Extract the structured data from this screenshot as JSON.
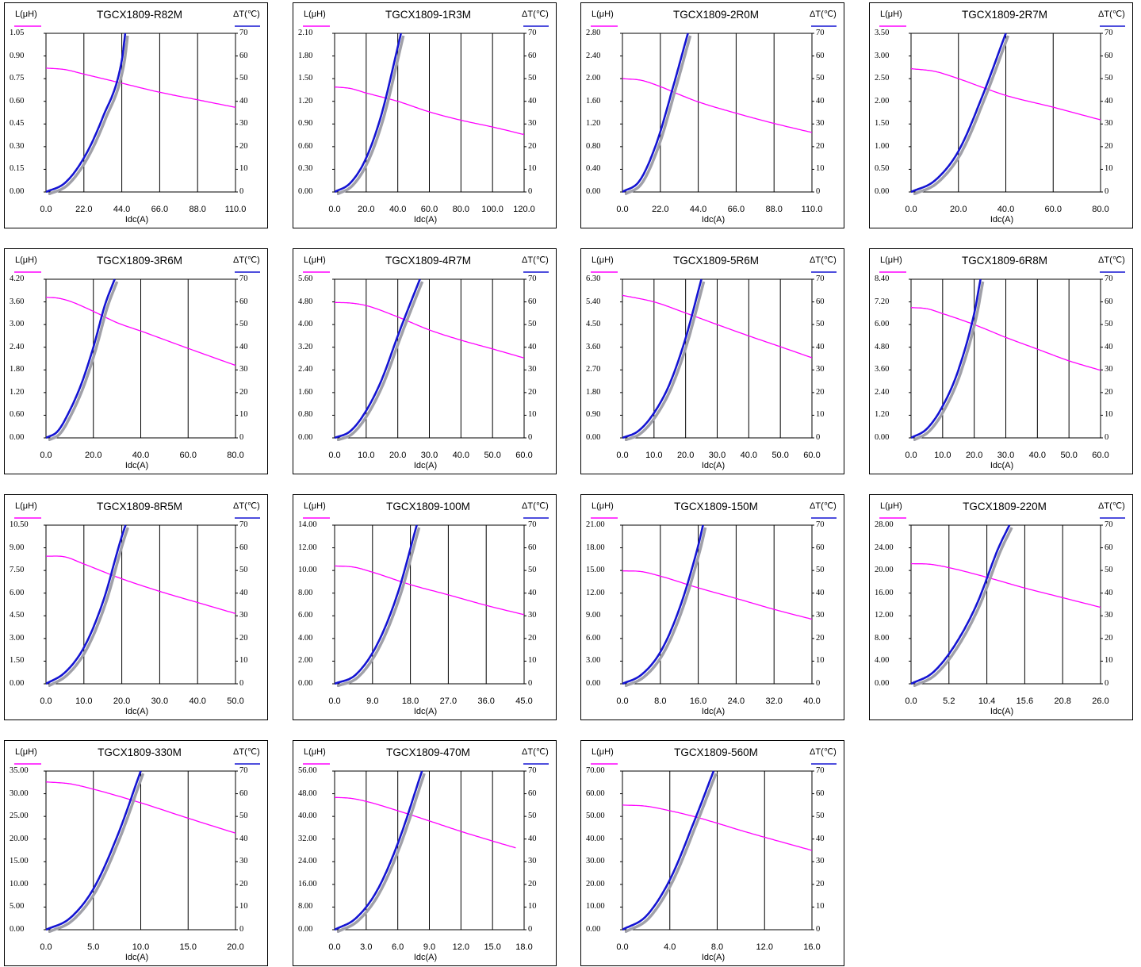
{
  "common": {
    "left_axis_label": "L(μH)",
    "right_axis_label": "ΔT(℃)",
    "x_axis_label": "Idc(A)",
    "right_ticks": [
      "70",
      "60",
      "50",
      "40",
      "30",
      "20",
      "10",
      "0"
    ]
  },
  "colors": {
    "inductance": "#ff00ff",
    "temperature": "#1414d2",
    "shadow": "#a0a0a8"
  },
  "chart_data": [
    {
      "type": "line",
      "title": "TGCX1809-R82M",
      "xlabel": "Idc(A)",
      "ylabel": "L(μH)",
      "y2label": "ΔT(℃)",
      "xticks": [
        "0.0",
        "22.0",
        "44.0",
        "66.0",
        "88.0",
        "110.0"
      ],
      "yticks": [
        "1.05",
        "0.90",
        "0.75",
        "0.60",
        "0.45",
        "0.30",
        "0.15",
        "0.00"
      ],
      "xlim": [
        0,
        110
      ],
      "ylim": [
        0,
        1.05
      ],
      "y2lim": [
        0,
        70
      ],
      "series": [
        {
          "name": "L(μH)",
          "axis": "left",
          "x": [
            0,
            11,
            22,
            44,
            66,
            88,
            110
          ],
          "y": [
            0.82,
            0.81,
            0.78,
            0.72,
            0.66,
            0.61,
            0.56
          ]
        },
        {
          "name": "ΔT(℃)",
          "axis": "right",
          "x": [
            0,
            11,
            22,
            33,
            44,
            46
          ],
          "y": [
            0,
            4,
            15,
            33,
            58,
            70
          ]
        }
      ]
    },
    {
      "type": "line",
      "title": "TGCX1809-1R3M",
      "xlabel": "Idc(A)",
      "ylabel": "L(μH)",
      "y2label": "ΔT(℃)",
      "xticks": [
        "0.0",
        "20.0",
        "40.0",
        "60.0",
        "80.0",
        "100.0",
        "120.0"
      ],
      "yticks": [
        "2.10",
        "1.80",
        "1.50",
        "1.20",
        "0.90",
        "0.60",
        "0.30",
        "0.00"
      ],
      "xlim": [
        0,
        120
      ],
      "ylim": [
        0,
        2.1
      ],
      "y2lim": [
        0,
        70
      ],
      "series": [
        {
          "name": "L(μH)",
          "axis": "left",
          "x": [
            0,
            10,
            20,
            40,
            60,
            80,
            100,
            120
          ],
          "y": [
            1.39,
            1.37,
            1.31,
            1.2,
            1.06,
            0.95,
            0.86,
            0.76
          ]
        },
        {
          "name": "ΔT(℃)",
          "axis": "right",
          "x": [
            0,
            10,
            20,
            30,
            40,
            42
          ],
          "y": [
            0,
            4,
            15,
            35,
            64,
            70
          ]
        }
      ]
    },
    {
      "type": "line",
      "title": "TGCX1809-2R0M",
      "xlabel": "Idc(A)",
      "ylabel": "L(μH)",
      "y2label": "ΔT(℃)",
      "xticks": [
        "0.0",
        "22.0",
        "44.0",
        "66.0",
        "88.0",
        "110.0"
      ],
      "yticks": [
        "2.80",
        "2.40",
        "2.00",
        "1.60",
        "1.20",
        "0.80",
        "0.40",
        "0.00"
      ],
      "xlim": [
        0,
        110
      ],
      "ylim": [
        0,
        2.8
      ],
      "y2lim": [
        0,
        70
      ],
      "series": [
        {
          "name": "L(μH)",
          "axis": "left",
          "x": [
            0,
            11,
            22,
            33,
            44,
            66,
            88,
            110
          ],
          "y": [
            2.0,
            1.97,
            1.86,
            1.72,
            1.59,
            1.39,
            1.21,
            1.05
          ]
        },
        {
          "name": "ΔT(℃)",
          "axis": "right",
          "x": [
            0,
            10,
            20,
            30,
            38
          ],
          "y": [
            0,
            5,
            22,
            48,
            70
          ]
        }
      ]
    },
    {
      "type": "line",
      "title": "TGCX1809-2R7M",
      "xlabel": "Idc(A)",
      "ylabel": "L(μH)",
      "y2label": "ΔT(℃)",
      "xticks": [
        "0.0",
        "20.0",
        "40.0",
        "60.0",
        "80.0"
      ],
      "yticks": [
        "3.50",
        "3.00",
        "2.50",
        "2.00",
        "1.50",
        "1.00",
        "0.50",
        "0.00"
      ],
      "xlim": [
        0,
        80
      ],
      "ylim": [
        0,
        3.5
      ],
      "y2lim": [
        0,
        70
      ],
      "series": [
        {
          "name": "L(μH)",
          "axis": "left",
          "x": [
            0,
            10,
            20,
            30,
            40,
            60,
            80
          ],
          "y": [
            2.72,
            2.66,
            2.5,
            2.31,
            2.13,
            1.87,
            1.59
          ]
        },
        {
          "name": "ΔT(℃)",
          "axis": "right",
          "x": [
            0,
            10,
            20,
            30,
            40
          ],
          "y": [
            0,
            5,
            18,
            42,
            70
          ]
        }
      ]
    },
    {
      "type": "line",
      "title": "TGCX1809-3R6M",
      "xlabel": "Idc(A)",
      "ylabel": "L(μH)",
      "y2label": "ΔT(℃)",
      "xticks": [
        "0.0",
        "20.0",
        "40.0",
        "60.0",
        "80.0"
      ],
      "yticks": [
        "4.20",
        "3.60",
        "3.00",
        "2.40",
        "1.80",
        "1.20",
        "0.60",
        "0.00"
      ],
      "xlim": [
        0,
        80
      ],
      "ylim": [
        0,
        4.2
      ],
      "y2lim": [
        0,
        70
      ],
      "series": [
        {
          "name": "L(μH)",
          "axis": "left",
          "x": [
            0,
            5,
            10,
            20,
            30,
            40,
            60,
            80
          ],
          "y": [
            3.72,
            3.7,
            3.62,
            3.35,
            3.05,
            2.83,
            2.37,
            1.92
          ]
        },
        {
          "name": "ΔT(℃)",
          "axis": "right",
          "x": [
            0,
            5,
            10,
            15,
            20,
            25,
            29
          ],
          "y": [
            0,
            3,
            12,
            24,
            40,
            59,
            70
          ]
        }
      ]
    },
    {
      "type": "line",
      "title": "TGCX1809-4R7M",
      "xlabel": "Idc(A)",
      "ylabel": "L(μH)",
      "y2label": "ΔT(℃)",
      "xticks": [
        "0.0",
        "10.0",
        "20.0",
        "30.0",
        "40.0",
        "50.0",
        "60.0"
      ],
      "yticks": [
        "5.60",
        "4.80",
        "4.00",
        "3.20",
        "2.40",
        "1.60",
        "0.80",
        "0.00"
      ],
      "xlim": [
        0,
        60
      ],
      "ylim": [
        0,
        5.6
      ],
      "y2lim": [
        0,
        70
      ],
      "series": [
        {
          "name": "L(μH)",
          "axis": "left",
          "x": [
            0,
            5,
            10,
            20,
            30,
            40,
            50,
            60
          ],
          "y": [
            4.78,
            4.76,
            4.67,
            4.27,
            3.81,
            3.45,
            3.14,
            2.82
          ]
        },
        {
          "name": "ΔT(℃)",
          "axis": "right",
          "x": [
            0,
            5,
            10,
            15,
            20,
            25,
            27
          ],
          "y": [
            0,
            3,
            12,
            26,
            45,
            63,
            70
          ]
        }
      ]
    },
    {
      "type": "line",
      "title": "TGCX1809-5R6M",
      "xlabel": "Idc(A)",
      "ylabel": "L(μH)",
      "y2label": "ΔT(℃)",
      "xticks": [
        "0.0",
        "10.0",
        "20.0",
        "30.0",
        "40.0",
        "50.0",
        "60.0"
      ],
      "yticks": [
        "6.30",
        "5.40",
        "4.50",
        "3.60",
        "2.70",
        "1.80",
        "0.90",
        "0.00"
      ],
      "xlim": [
        0,
        60
      ],
      "ylim": [
        0,
        6.3
      ],
      "y2lim": [
        0,
        70
      ],
      "series": [
        {
          "name": "L(μH)",
          "axis": "left",
          "x": [
            0,
            10,
            20,
            30,
            40,
            50,
            60
          ],
          "y": [
            5.66,
            5.4,
            4.96,
            4.5,
            4.05,
            3.62,
            3.18
          ]
        },
        {
          "name": "ΔT(℃)",
          "axis": "right",
          "x": [
            0,
            5,
            10,
            15,
            20,
            25
          ],
          "y": [
            0,
            3,
            11,
            24,
            44,
            70
          ]
        }
      ]
    },
    {
      "type": "line",
      "title": "TGCX1809-6R8M",
      "xlabel": "Idc(A)",
      "ylabel": "L(μH)",
      "y2label": "ΔT(℃)",
      "xticks": [
        "0.0",
        "10.0",
        "20.0",
        "30.0",
        "40.0",
        "50.0",
        "60.0"
      ],
      "yticks": [
        "8.40",
        "7.20",
        "6.00",
        "4.80",
        "3.60",
        "2.40",
        "1.20",
        "0.00"
      ],
      "xlim": [
        0,
        60
      ],
      "ylim": [
        0,
        8.4
      ],
      "y2lim": [
        0,
        70
      ],
      "series": [
        {
          "name": "L(μH)",
          "axis": "left",
          "x": [
            0,
            5,
            10,
            20,
            30,
            40,
            50,
            60
          ],
          "y": [
            6.9,
            6.84,
            6.58,
            6.0,
            5.32,
            4.7,
            4.08,
            3.58
          ]
        },
        {
          "name": "ΔT(℃)",
          "axis": "right",
          "x": [
            0,
            5,
            10,
            15,
            20,
            22
          ],
          "y": [
            0,
            4,
            14,
            30,
            55,
            70
          ]
        }
      ]
    },
    {
      "type": "line",
      "title": "TGCX1809-8R5M",
      "xlabel": "Idc(A)",
      "ylabel": "L(μH)",
      "y2label": "ΔT(℃)",
      "xticks": [
        "0.0",
        "10.0",
        "20.0",
        "30.0",
        "40.0",
        "50.0"
      ],
      "yticks": [
        "10.50",
        "9.00",
        "7.50",
        "6.00",
        "4.50",
        "3.00",
        "1.50",
        "0.00"
      ],
      "xlim": [
        0,
        50
      ],
      "ylim": [
        0,
        10.5
      ],
      "y2lim": [
        0,
        70
      ],
      "series": [
        {
          "name": "L(μH)",
          "axis": "left",
          "x": [
            0,
            5,
            10,
            20,
            30,
            40,
            50
          ],
          "y": [
            8.45,
            8.4,
            7.93,
            6.95,
            6.12,
            5.38,
            4.65
          ]
        },
        {
          "name": "ΔT(℃)",
          "axis": "right",
          "x": [
            0,
            5,
            10,
            15,
            20,
            21
          ],
          "y": [
            0,
            5,
            16,
            36,
            65,
            70
          ]
        }
      ]
    },
    {
      "type": "line",
      "title": "TGCX1809-100M",
      "xlabel": "Idc(A)",
      "ylabel": "L(μH)",
      "y2label": "ΔT(℃)",
      "xticks": [
        "0.0",
        "9.0",
        "18.0",
        "27.0",
        "36.0",
        "45.0"
      ],
      "yticks": [
        "14.00",
        "12.00",
        "10.00",
        "8.00",
        "6.00",
        "4.00",
        "2.00",
        "0.00"
      ],
      "xlim": [
        0,
        45
      ],
      "ylim": [
        0,
        14
      ],
      "y2lim": [
        0,
        70
      ],
      "series": [
        {
          "name": "L(μH)",
          "axis": "left",
          "x": [
            0,
            4.5,
            9,
            18,
            27,
            36,
            45
          ],
          "y": [
            10.4,
            10.3,
            9.85,
            8.75,
            7.85,
            6.92,
            6.1
          ]
        },
        {
          "name": "ΔT(℃)",
          "axis": "right",
          "x": [
            0,
            5,
            10,
            15,
            19.5
          ],
          "y": [
            0,
            4,
            17,
            40,
            70
          ]
        }
      ]
    },
    {
      "type": "line",
      "title": "TGCX1809-150M",
      "xlabel": "Idc(A)",
      "ylabel": "L(μH)",
      "y2label": "ΔT(℃)",
      "xticks": [
        "0.0",
        "8.0",
        "16.0",
        "24.0",
        "32.0",
        "40.0"
      ],
      "yticks": [
        "21.00",
        "18.00",
        "15.00",
        "12.00",
        "9.00",
        "6.00",
        "3.00",
        "0.00"
      ],
      "xlim": [
        0,
        40
      ],
      "ylim": [
        0,
        21
      ],
      "y2lim": [
        0,
        70
      ],
      "series": [
        {
          "name": "L(μH)",
          "axis": "left",
          "x": [
            0,
            4,
            8,
            16,
            24,
            32,
            40
          ],
          "y": [
            14.95,
            14.85,
            14.25,
            12.7,
            11.3,
            9.85,
            8.55
          ]
        },
        {
          "name": "ΔT(℃)",
          "axis": "right",
          "x": [
            0,
            4,
            8,
            12,
            16,
            17
          ],
          "y": [
            0,
            4,
            14,
            33,
            61,
            70
          ]
        }
      ]
    },
    {
      "type": "line",
      "title": "TGCX1809-220M",
      "xlabel": "Idc(A)",
      "ylabel": "L(μH)",
      "y2label": "ΔT(℃)",
      "xticks": [
        "0.0",
        "5.2",
        "10.4",
        "15.6",
        "20.8",
        "26.0"
      ],
      "yticks": [
        "28.00",
        "24.00",
        "20.00",
        "16.00",
        "12.00",
        "8.00",
        "4.00",
        "0.00"
      ],
      "xlim": [
        0,
        26
      ],
      "ylim": [
        0,
        28
      ],
      "y2lim": [
        0,
        70
      ],
      "series": [
        {
          "name": "L(μH)",
          "axis": "left",
          "x": [
            0,
            2.6,
            5.2,
            10.4,
            15.6,
            20.8,
            26
          ],
          "y": [
            21.2,
            21.1,
            20.5,
            18.8,
            16.9,
            15.2,
            13.5
          ]
        },
        {
          "name": "ΔT(℃)",
          "axis": "right",
          "x": [
            0,
            3,
            6,
            9,
            12,
            13.5
          ],
          "y": [
            0,
            5,
            17,
            35,
            60,
            70
          ]
        }
      ]
    },
    {
      "type": "line",
      "title": "TGCX1809-330M",
      "xlabel": "Idc(A)",
      "ylabel": "L(μH)",
      "y2label": "ΔT(℃)",
      "xticks": [
        "0.0",
        "5.0",
        "10.0",
        "15.0",
        "20.0"
      ],
      "yticks": [
        "35.00",
        "30.00",
        "25.00",
        "20.00",
        "15.00",
        "10.00",
        "5.00",
        "0.00"
      ],
      "xlim": [
        0,
        20
      ],
      "ylim": [
        0,
        35
      ],
      "y2lim": [
        0,
        70
      ],
      "series": [
        {
          "name": "L(μH)",
          "axis": "left",
          "x": [
            0,
            2.5,
            5,
            10,
            15,
            20
          ],
          "y": [
            32.6,
            32.2,
            31.0,
            28.0,
            24.6,
            21.3
          ]
        },
        {
          "name": "ΔT(℃)",
          "axis": "right",
          "x": [
            0,
            2.5,
            5,
            7.5,
            10
          ],
          "y": [
            0,
            5,
            18,
            41,
            70
          ]
        }
      ]
    },
    {
      "type": "line",
      "title": "TGCX1809-470M",
      "xlabel": "Idc(A)",
      "ylabel": "L(μH)",
      "y2label": "ΔT(℃)",
      "xticks": [
        "0.0",
        "3.0",
        "6.0",
        "9.0",
        "12.0",
        "15.0",
        "18.0"
      ],
      "yticks": [
        "56.00",
        "48.00",
        "40.00",
        "32.00",
        "24.00",
        "16.00",
        "8.00",
        "0.00"
      ],
      "xlim": [
        0,
        18
      ],
      "ylim": [
        0,
        56
      ],
      "y2lim": [
        0,
        70
      ],
      "series": [
        {
          "name": "L(μH)",
          "axis": "left",
          "x": [
            0,
            1.5,
            3,
            6,
            9,
            12,
            15,
            17.2
          ],
          "y": [
            46.7,
            46.4,
            45.3,
            42.0,
            38.4,
            34.7,
            31.3,
            28.9
          ]
        },
        {
          "name": "ΔT(℃)",
          "axis": "right",
          "x": [
            0,
            2,
            4,
            6,
            8.3
          ],
          "y": [
            0,
            5,
            17,
            38,
            70
          ]
        }
      ]
    },
    {
      "type": "line",
      "title": "TGCX1809-560M",
      "xlabel": "Idc(A)",
      "ylabel": "L(μH)",
      "y2label": "ΔT(℃)",
      "xticks": [
        "0.0",
        "4.0",
        "8.0",
        "12.0",
        "16.0"
      ],
      "yticks": [
        "70.00",
        "60.00",
        "50.00",
        "40.00",
        "30.00",
        "20.00",
        "10.00",
        "0.00"
      ],
      "xlim": [
        0,
        16
      ],
      "ylim": [
        0,
        70
      ],
      "y2lim": [
        0,
        70
      ],
      "series": [
        {
          "name": "L(μH)",
          "axis": "left",
          "x": [
            0,
            2,
            4,
            6,
            8,
            10,
            12,
            14,
            16
          ],
          "y": [
            55.0,
            54.5,
            52.5,
            50.0,
            47.0,
            43.8,
            40.8,
            37.9,
            35.0
          ]
        },
        {
          "name": "ΔT(℃)",
          "axis": "right",
          "x": [
            0,
            2,
            4,
            6,
            7.7
          ],
          "y": [
            0,
            6,
            22,
            47,
            70
          ]
        }
      ]
    }
  ]
}
